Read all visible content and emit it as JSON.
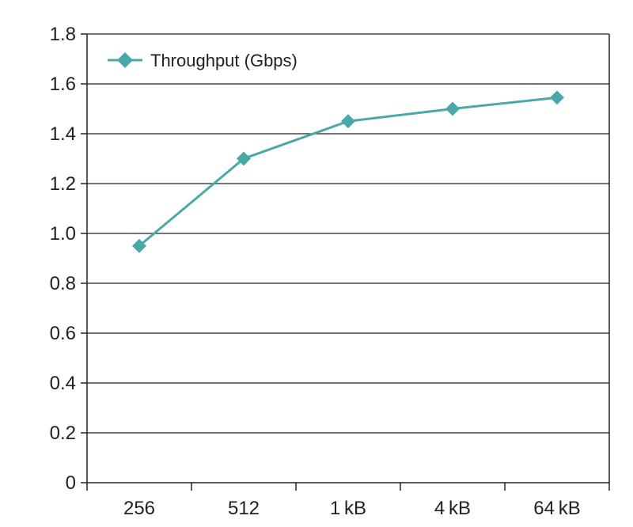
{
  "chart_data": {
    "type": "line",
    "categories": [
      "256",
      "512",
      "1 kB",
      "4 kB",
      "64 kB"
    ],
    "series": [
      {
        "name": "Throughput (Gbps)",
        "values": [
          0.95,
          1.3,
          1.45,
          1.5,
          1.545
        ]
      }
    ],
    "yticks": [
      "0",
      "0.2",
      "0.4",
      "0.6",
      "0.8",
      "1.0",
      "1.2",
      "1.4",
      "1.6",
      "1.8"
    ],
    "ylim": [
      0,
      1.8
    ],
    "grid": true,
    "legend_position": "top-left",
    "colors": {
      "series": "#4aa8a8",
      "axis": "#222222",
      "grid": "#222222"
    }
  }
}
